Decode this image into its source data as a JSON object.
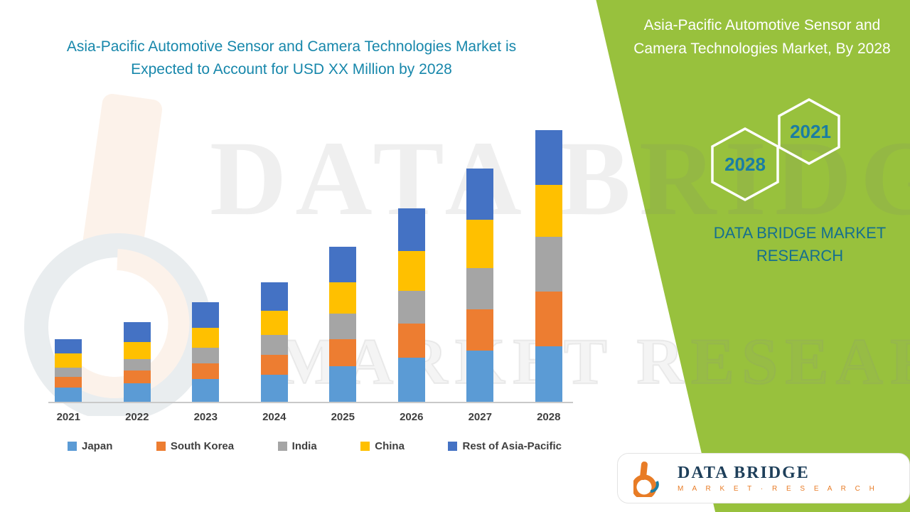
{
  "headline": {
    "text": "Asia-Pacific Automotive Sensor and Camera Technologies Market is Expected to Account for USD XX Million by 2028"
  },
  "side_panel": {
    "title": "Asia-Pacific Automotive Sensor and Camera Technologies Market, By 2028",
    "hexagons": [
      {
        "label": "2028"
      },
      {
        "label": "2021"
      }
    ],
    "brand": "DATA BRIDGE MARKET RESEARCH",
    "panel_color": "#98c13d",
    "title_color": "#ffffff",
    "hexagon_text_color": "#1a7da3"
  },
  "logo": {
    "name": "DATA BRIDGE",
    "tagline": "M A R K E T · R E S E A R C H"
  },
  "watermark": {
    "line1": "DATA BRIDGE",
    "line2": "MARKET RESEARCH"
  },
  "colors": {
    "headline_text": "#1787ab",
    "axis_labels": "#3f3f3f",
    "accent_orange": "#e87c26",
    "logo_navy": "#1e3f5a"
  },
  "chart_data": {
    "type": "bar",
    "stacked": true,
    "title": "Asia-Pacific Automotive Sensor and Camera Technologies Market is Expected to Account for USD XX Million by 2028",
    "xlabel": "",
    "ylabel": "",
    "y_axis_visible": false,
    "gridlines": false,
    "legend_position": "bottom",
    "units": "relative height units (no numeric axis shown; values estimated from bar pixel heights)",
    "categories": [
      "2021",
      "2022",
      "2023",
      "2024",
      "2025",
      "2026",
      "2027",
      "2028"
    ],
    "series": [
      {
        "name": "Japan",
        "color": "#5b9bd5",
        "values": [
          20,
          26,
          32,
          38,
          50,
          62,
          72,
          78
        ]
      },
      {
        "name": "South Korea",
        "color": "#ed7d31",
        "values": [
          15,
          18,
          22,
          28,
          38,
          48,
          58,
          77
        ]
      },
      {
        "name": "India",
        "color": "#a5a5a5",
        "values": [
          13,
          16,
          22,
          28,
          36,
          46,
          58,
          77
        ]
      },
      {
        "name": "China",
        "color": "#ffc000",
        "values": [
          20,
          24,
          28,
          34,
          44,
          56,
          68,
          73
        ]
      },
      {
        "name": "Rest of Asia-Pacific",
        "color": "#4472c4",
        "values": [
          20,
          28,
          36,
          40,
          50,
          60,
          72,
          77
        ]
      }
    ],
    "totals": [
      88,
      112,
      140,
      168,
      218,
      272,
      328,
      382
    ]
  }
}
